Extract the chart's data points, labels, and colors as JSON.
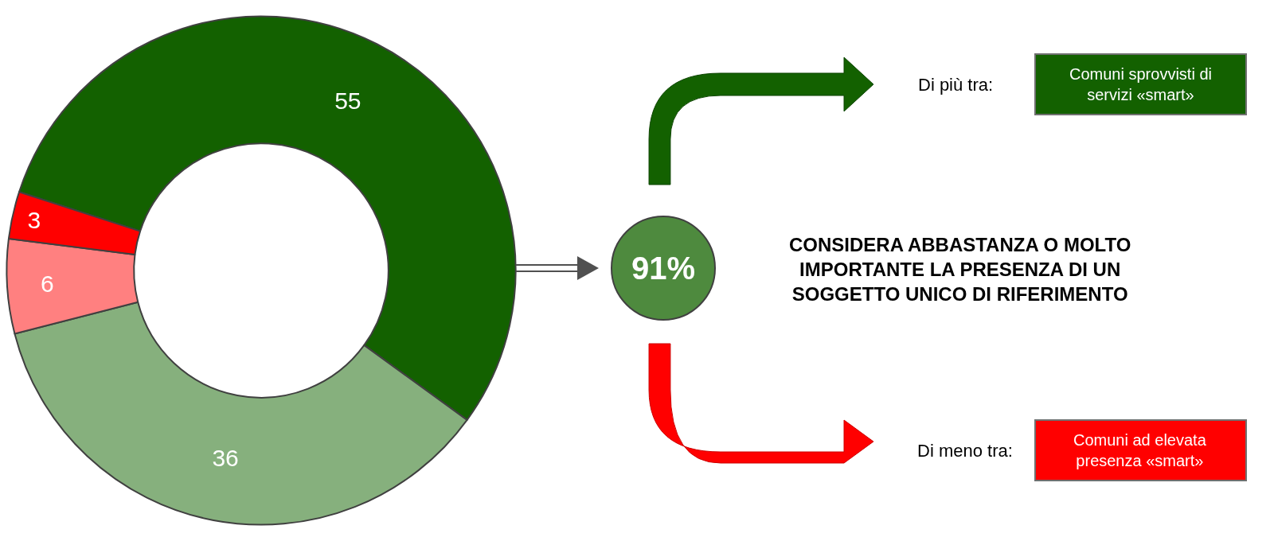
{
  "chart_data": [
    {
      "type": "donut",
      "categories": [
        null,
        null,
        null,
        null
      ],
      "values": [
        55,
        36,
        6,
        3
      ],
      "colors": [
        "#136100",
        "#86b07d",
        "#ff8080",
        "#ff0000"
      ],
      "data_labels": true
    },
    {
      "type": "other",
      "annotations": [
        "91%",
        "CONSIDERA ABBASTANZA O MOLTO IMPORTANTE LA PRESENZA DI UN SOGGETTO UNICO DI RIFERIMENTO",
        "Di più tra:",
        "Comuni sprovvisti di servizi «smart»",
        "Di meno tra:",
        "Comuni ad elevata presenza «smart»"
      ]
    }
  ]
}
